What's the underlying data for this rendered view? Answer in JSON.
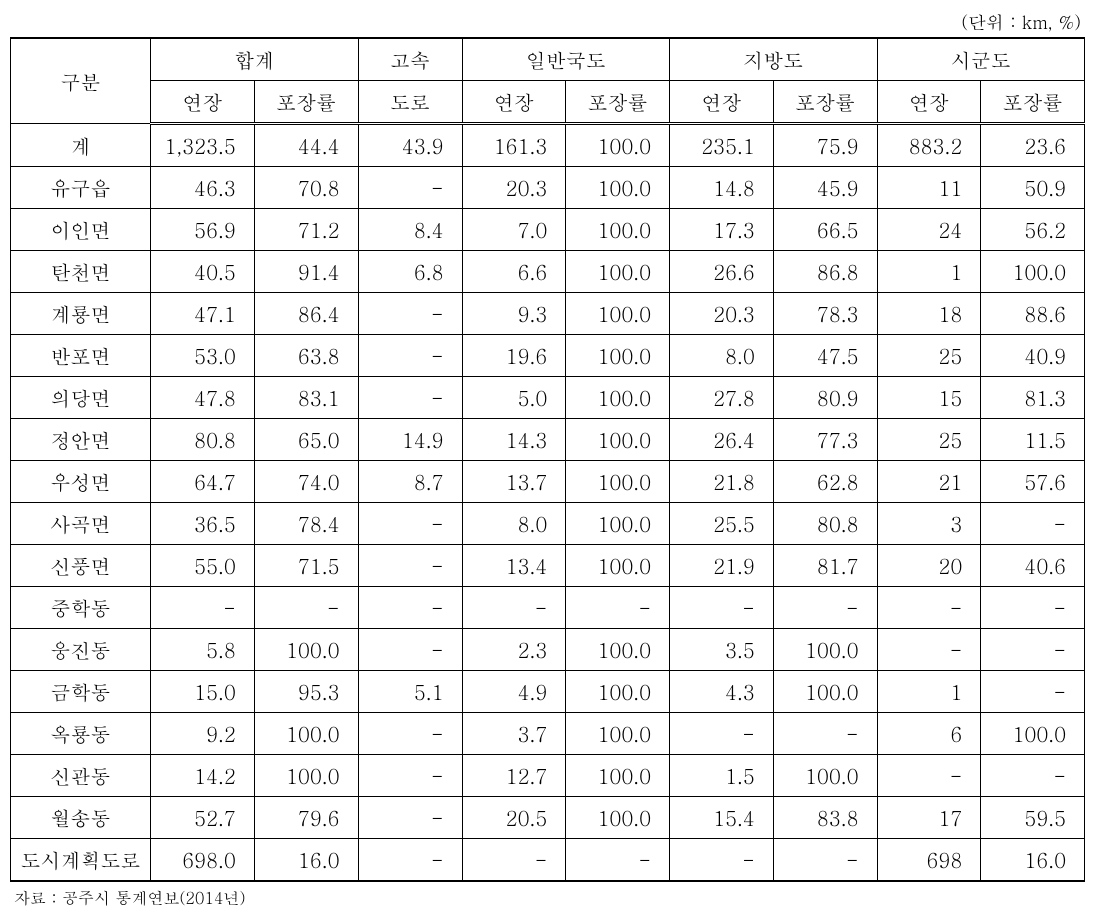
{
  "unit_label": "(단위  : km, %)",
  "headers": {
    "gubun": "구분",
    "total": "합계",
    "highway": "고속",
    "highway2": "도로",
    "national": "일반국도",
    "provincial": "지방도",
    "county": "시군도",
    "length": "연장",
    "rate": "포장률"
  },
  "rows": [
    {
      "label": "계",
      "total_len": "1,323.5",
      "total_rate": "44.4",
      "highway": "43.9",
      "nat_len": "161.3",
      "nat_rate": "100.0",
      "prov_len": "235.1",
      "prov_rate": "75.9",
      "cty_len": "883.2",
      "cty_rate": "23.6"
    },
    {
      "label": "유구읍",
      "total_len": "46.3",
      "total_rate": "70.8",
      "highway": "-",
      "nat_len": "20.3",
      "nat_rate": "100.0",
      "prov_len": "14.8",
      "prov_rate": "45.9",
      "cty_len": "11",
      "cty_rate": "50.9"
    },
    {
      "label": "이인면",
      "total_len": "56.9",
      "total_rate": "71.2",
      "highway": "8.4",
      "nat_len": "7.0",
      "nat_rate": "100.0",
      "prov_len": "17.3",
      "prov_rate": "66.5",
      "cty_len": "24",
      "cty_rate": "56.2"
    },
    {
      "label": "탄천면",
      "total_len": "40.5",
      "total_rate": "91.4",
      "highway": "6.8",
      "nat_len": "6.6",
      "nat_rate": "100.0",
      "prov_len": "26.6",
      "prov_rate": "86.8",
      "cty_len": "1",
      "cty_rate": "100.0"
    },
    {
      "label": "계룡면",
      "total_len": "47.1",
      "total_rate": "86.4",
      "highway": "-",
      "nat_len": "9.3",
      "nat_rate": "100.0",
      "prov_len": "20.3",
      "prov_rate": "78.3",
      "cty_len": "18",
      "cty_rate": "88.6"
    },
    {
      "label": "반포면",
      "total_len": "53.0",
      "total_rate": "63.8",
      "highway": "-",
      "nat_len": "19.6",
      "nat_rate": "100.0",
      "prov_len": "8.0",
      "prov_rate": "47.5",
      "cty_len": "25",
      "cty_rate": "40.9"
    },
    {
      "label": "의당면",
      "total_len": "47.8",
      "total_rate": "83.1",
      "highway": "-",
      "nat_len": "5.0",
      "nat_rate": "100.0",
      "prov_len": "27.8",
      "prov_rate": "80.9",
      "cty_len": "15",
      "cty_rate": "81.3"
    },
    {
      "label": "정안면",
      "total_len": "80.8",
      "total_rate": "65.0",
      "highway": "14.9",
      "nat_len": "14.3",
      "nat_rate": "100.0",
      "prov_len": "26.4",
      "prov_rate": "77.3",
      "cty_len": "25",
      "cty_rate": "11.5"
    },
    {
      "label": "우성면",
      "total_len": "64.7",
      "total_rate": "74.0",
      "highway": "8.7",
      "nat_len": "13.7",
      "nat_rate": "100.0",
      "prov_len": "21.8",
      "prov_rate": "62.8",
      "cty_len": "21",
      "cty_rate": "57.6"
    },
    {
      "label": "사곡면",
      "total_len": "36.5",
      "total_rate": "78.4",
      "highway": "-",
      "nat_len": "8.0",
      "nat_rate": "100.0",
      "prov_len": "25.5",
      "prov_rate": "80.8",
      "cty_len": "3",
      "cty_rate": "-"
    },
    {
      "label": "신풍면",
      "total_len": "55.0",
      "total_rate": "71.5",
      "highway": "-",
      "nat_len": "13.4",
      "nat_rate": "100.0",
      "prov_len": "21.9",
      "prov_rate": "81.7",
      "cty_len": "20",
      "cty_rate": "40.6"
    },
    {
      "label": "중학동",
      "total_len": "-",
      "total_rate": "-",
      "highway": "-",
      "nat_len": "-",
      "nat_rate": "-",
      "prov_len": "-",
      "prov_rate": "-",
      "cty_len": "-",
      "cty_rate": "-"
    },
    {
      "label": "웅진동",
      "total_len": "5.8",
      "total_rate": "100.0",
      "highway": "-",
      "nat_len": "2.3",
      "nat_rate": "100.0",
      "prov_len": "3.5",
      "prov_rate": "100.0",
      "cty_len": "-",
      "cty_rate": "-"
    },
    {
      "label": "금학동",
      "total_len": "15.0",
      "total_rate": "95.3",
      "highway": "5.1",
      "nat_len": "4.9",
      "nat_rate": "100.0",
      "prov_len": "4.3",
      "prov_rate": "100.0",
      "cty_len": "1",
      "cty_rate": "-"
    },
    {
      "label": "옥룡동",
      "total_len": "9.2",
      "total_rate": "100.0",
      "highway": "-",
      "nat_len": "3.7",
      "nat_rate": "100.0",
      "prov_len": "-",
      "prov_rate": "-",
      "cty_len": "6",
      "cty_rate": "100.0"
    },
    {
      "label": "신관동",
      "total_len": "14.2",
      "total_rate": "100.0",
      "highway": "-",
      "nat_len": "12.7",
      "nat_rate": "100.0",
      "prov_len": "1.5",
      "prov_rate": "100.0",
      "cty_len": "-",
      "cty_rate": "-"
    },
    {
      "label": "월송동",
      "total_len": "52.7",
      "total_rate": "79.6",
      "highway": "-",
      "nat_len": "20.5",
      "nat_rate": "100.0",
      "prov_len": "15.4",
      "prov_rate": "83.8",
      "cty_len": "17",
      "cty_rate": "59.5"
    },
    {
      "label": "도시계획도로",
      "total_len": "698.0",
      "total_rate": "16.0",
      "highway": "-",
      "nat_len": "-",
      "nat_rate": "-",
      "prov_len": "-",
      "prov_rate": "-",
      "cty_len": "698",
      "cty_rate": "16.0"
    }
  ],
  "source": "자료  : 공주시 통계연보(2014년)"
}
